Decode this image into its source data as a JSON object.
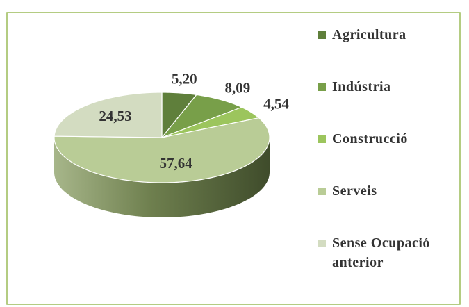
{
  "chart_data": {
    "type": "pie",
    "categories": [
      "Agricultura",
      "Indústria",
      "Construcció",
      "Serveis",
      "Sense Ocupació anterior"
    ],
    "values": [
      5.2,
      8.09,
      4.54,
      57.64,
      24.53
    ],
    "value_labels": [
      "5,20",
      "8,09",
      "4,54",
      "57,64",
      "24,53"
    ],
    "colors": [
      "#5f7f3b",
      "#789f49",
      "#9cc55d",
      "#b9cc96",
      "#d3dcc1"
    ],
    "legend": "right"
  }
}
